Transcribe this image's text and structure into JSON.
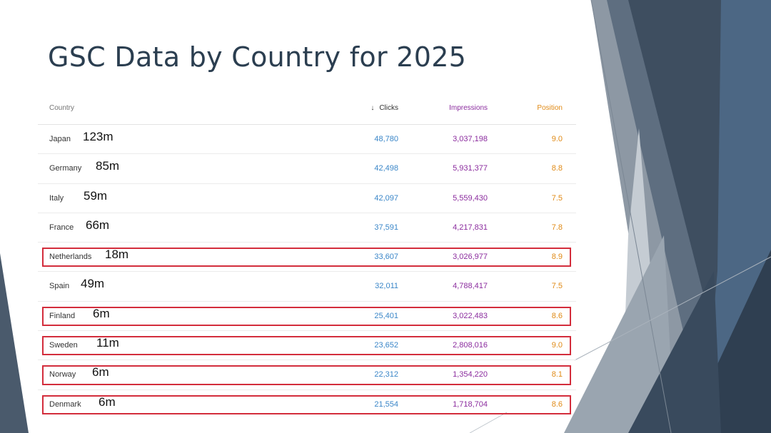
{
  "title": "GSC Data by Country for 2025",
  "columns": {
    "country": "Country",
    "clicks_arrow": "↓",
    "clicks": "Clicks",
    "impressions": "Impressions",
    "position": "Position"
  },
  "rows": [
    {
      "country": "Japan",
      "population": "123m",
      "clicks": "48,780",
      "impressions": "3,037,198",
      "position": "9.0",
      "highlighted": false
    },
    {
      "country": "Germany",
      "population": "85m",
      "clicks": "42,498",
      "impressions": "5,931,377",
      "position": "8.8",
      "highlighted": false
    },
    {
      "country": "Italy",
      "population": "59m",
      "clicks": "42,097",
      "impressions": "5,559,430",
      "position": "7.5",
      "highlighted": false
    },
    {
      "country": "France",
      "population": "66m",
      "clicks": "37,591",
      "impressions": "4,217,831",
      "position": "7.8",
      "highlighted": false
    },
    {
      "country": "Netherlands",
      "population": "18m",
      "clicks": "33,607",
      "impressions": "3,026,977",
      "position": "8.9",
      "highlighted": true
    },
    {
      "country": "Spain",
      "population": "49m",
      "clicks": "32,011",
      "impressions": "4,788,417",
      "position": "7.5",
      "highlighted": false
    },
    {
      "country": "Finland",
      "population": "6m",
      "clicks": "25,401",
      "impressions": "3,022,483",
      "position": "8.6",
      "highlighted": true
    },
    {
      "country": "Sweden",
      "population": "11m",
      "clicks": "23,652",
      "impressions": "2,808,016",
      "position": "9.0",
      "highlighted": true
    },
    {
      "country": "Norway",
      "population": "6m",
      "clicks": "22,312",
      "impressions": "1,354,220",
      "position": "8.1",
      "highlighted": true
    },
    {
      "country": "Denmark",
      "population": "6m",
      "clicks": "21,554",
      "impressions": "1,718,704",
      "position": "8.6",
      "highlighted": true
    }
  ],
  "colors": {
    "title": "#2b3e50",
    "clicks": "#3a86c8",
    "impressions": "#8b2c9e",
    "position": "#e08a16",
    "highlight_border": "#d32d3c"
  }
}
